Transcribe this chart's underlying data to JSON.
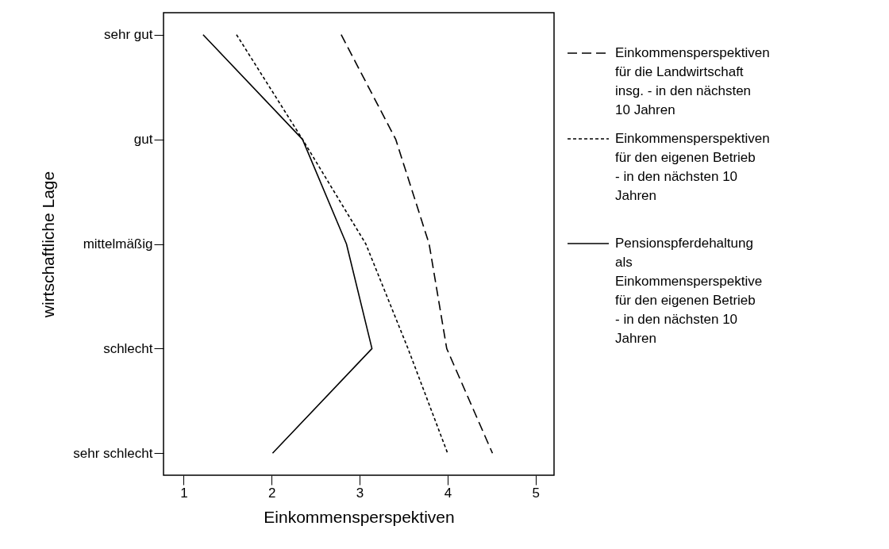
{
  "chart_data": {
    "type": "line",
    "orientation": "horizontal",
    "xlabel": "Einkommensperspektiven",
    "ylabel": "wirtschaftliche Lage",
    "categories": [
      "sehr gut",
      "gut",
      "mittelmäßig",
      "schlecht",
      "sehr schlecht"
    ],
    "series": [
      {
        "name": "Einkommensperspektiven für die Landwirtschaft insg. - in den nächsten 10 Jahren",
        "color": "#000000",
        "line_style": "dashed",
        "values": [
          2.79,
          3.41,
          3.79,
          3.99,
          4.51
        ]
      },
      {
        "name": "Einkommensperspektiven für den eigenen Betrieb - in den nächsten 10 Jahren",
        "color": "#000000",
        "line_style": "dotted",
        "values": [
          1.6,
          2.35,
          3.07,
          3.55,
          4.0
        ]
      },
      {
        "name": "Pensionspferdehaltung als Einkommensperspektive für den eigenen Betrieb - in den nächsten 10 Jahren",
        "color": "#000000",
        "line_style": "solid",
        "values": [
          1.22,
          2.35,
          2.85,
          3.14,
          2.01
        ]
      }
    ],
    "xlim": [
      0.77,
      5.21
    ],
    "xticks": [
      1,
      2,
      3,
      4,
      5
    ],
    "grid": false,
    "legend": "right",
    "marker": "none"
  }
}
